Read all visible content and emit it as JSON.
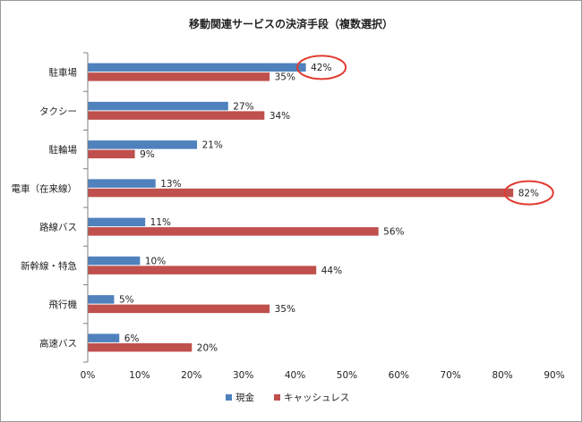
{
  "chart_data": {
    "type": "bar",
    "orientation": "horizontal",
    "title": "移動関連サービスの決済手段（複数選択）",
    "categories": [
      "駐車場",
      "タクシー",
      "駐輪場",
      "電車（在来線）",
      "路線バス",
      "新幹線・特急",
      "飛行機",
      "高速バス"
    ],
    "series": [
      {
        "name": "現金",
        "values": [
          42,
          27,
          21,
          13,
          11,
          10,
          5,
          6
        ],
        "color": "#4f81bd"
      },
      {
        "name": "キャッシュレス",
        "values": [
          35,
          34,
          9,
          82,
          56,
          44,
          35,
          20
        ],
        "color": "#c0504d"
      }
    ],
    "value_suffix": "%",
    "xlim": [
      0,
      90
    ],
    "xticks": [
      "0%",
      "10%",
      "20%",
      "30%",
      "40%",
      "50%",
      "60%",
      "70%",
      "80%",
      "90%"
    ],
    "grid": false,
    "legend_position": "bottom",
    "highlights": [
      {
        "category": "駐車場",
        "series": "現金"
      },
      {
        "category": "電車（在来線）",
        "series": "キャッシュレス"
      }
    ],
    "highlight_color": "#e03c31"
  }
}
